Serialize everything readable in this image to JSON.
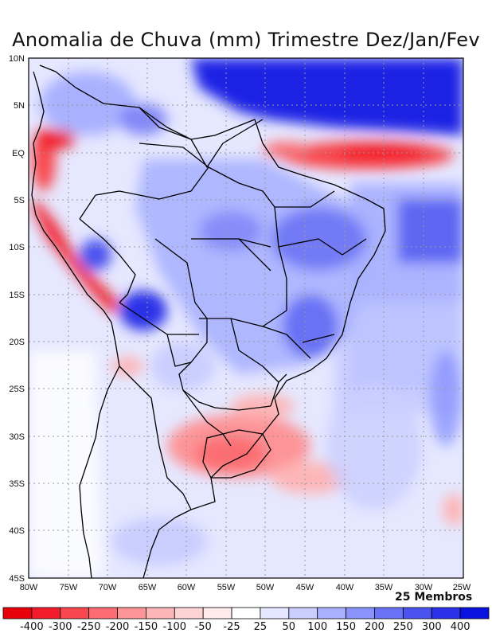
{
  "title": "Anomalia de Chuva (mm) Trimestre Dez/Jan/Fev",
  "members_label": "25 Membros",
  "lat_labels": [
    "10N",
    "5N",
    "EQ",
    "5S",
    "10S",
    "15S",
    "20S",
    "25S",
    "30S",
    "35S",
    "40S",
    "45S"
  ],
  "lon_labels": [
    "80W",
    "75W",
    "70W",
    "65W",
    "60W",
    "55W",
    "50W",
    "45W",
    "40W",
    "35W",
    "30W",
    "25W"
  ],
  "colorbar": {
    "labels": [
      "-400",
      "-300",
      "-250",
      "-200",
      "-150",
      "-100",
      "-50",
      "-25",
      "25",
      "50",
      "100",
      "150",
      "200",
      "250",
      "300",
      "400"
    ],
    "colors": [
      "#e8000b",
      "#f21c2c",
      "#f8474e",
      "#fb6d72",
      "#fd9498",
      "#fdb6b7",
      "#fed3d3",
      "#feeaea",
      "#ffffff",
      "#e4e7ff",
      "#c9ceff",
      "#a9b1ff",
      "#8a93fc",
      "#6a72f5",
      "#4b53ef",
      "#2a31e8",
      "#0a12e0"
    ]
  }
}
